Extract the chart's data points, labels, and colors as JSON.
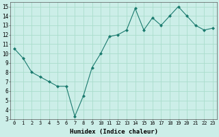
{
  "x": [
    0,
    1,
    2,
    3,
    4,
    5,
    6,
    7,
    8,
    9,
    10,
    11,
    12,
    13,
    14,
    15,
    16,
    17,
    18,
    19,
    20,
    21,
    22,
    23
  ],
  "y": [
    10.5,
    9.5,
    8.0,
    7.5,
    7.0,
    6.5,
    6.5,
    3.3,
    5.5,
    8.5,
    10.0,
    11.8,
    12.0,
    12.5,
    14.8,
    12.5,
    13.8,
    13.0,
    14.0,
    15.0,
    14.0,
    13.0,
    12.5,
    12.7
  ],
  "line_color": "#1a7a6e",
  "marker": "D",
  "marker_size": 2,
  "bg_color": "#cceee8",
  "grid_color": "#aaddcc",
  "xlabel": "Humidex (Indice chaleur)",
  "xlim": [
    -0.5,
    23.5
  ],
  "ylim": [
    3,
    15.5
  ],
  "yticks": [
    3,
    4,
    5,
    6,
    7,
    8,
    9,
    10,
    11,
    12,
    13,
    14,
    15
  ],
  "xticks": [
    0,
    1,
    2,
    3,
    4,
    5,
    6,
    7,
    8,
    9,
    10,
    11,
    12,
    13,
    14,
    15,
    16,
    17,
    18,
    19,
    20,
    21,
    22,
    23
  ],
  "xtick_labels": [
    "0",
    "1",
    "2",
    "3",
    "4",
    "5",
    "6",
    "7",
    "8",
    "9",
    "10",
    "11",
    "12",
    "13",
    "14",
    "15",
    "16",
    "17",
    "18",
    "19",
    "20",
    "21",
    "22",
    "23"
  ]
}
